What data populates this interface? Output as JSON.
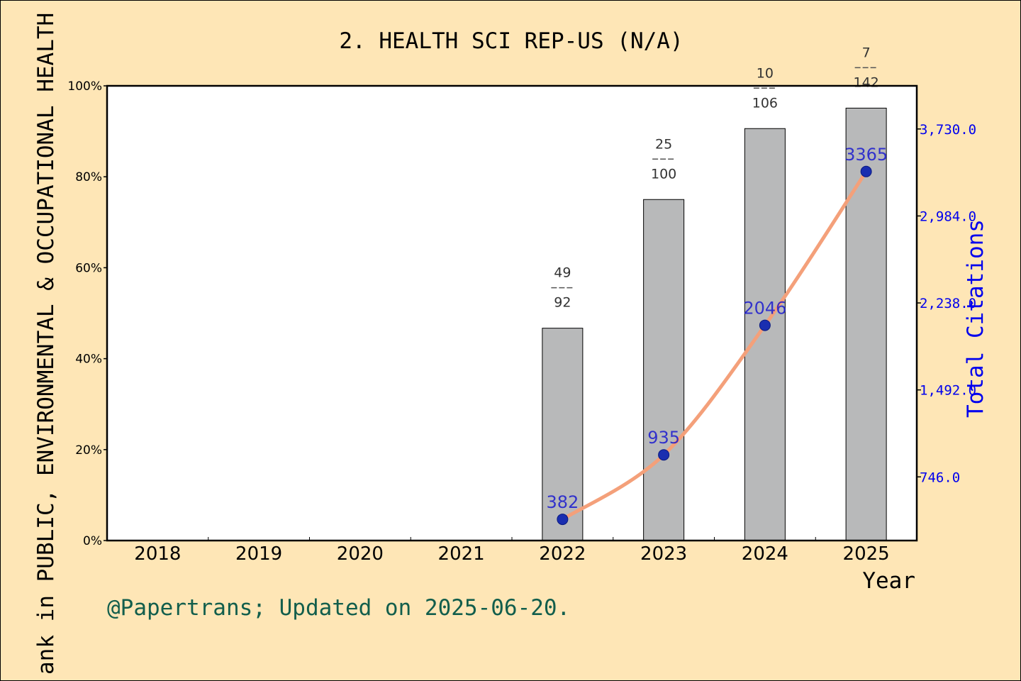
{
  "chart_data": {
    "type": "bar",
    "title": "2. HEALTH SCI REP-US (N/A)",
    "xlabel": "Year",
    "ylabel": "ank in PUBLIC, ENVIRONMENTAL & OCCUPATIONAL HEALTH",
    "y2label": "Total Citations",
    "categories": [
      "2018",
      "2019",
      "2020",
      "2021",
      "2022",
      "2023",
      "2024",
      "2025"
    ],
    "ylim": [
      0,
      100
    ],
    "y_ticks": [
      "0%",
      "20%",
      "40%",
      "60%",
      "80%",
      "100%"
    ],
    "y2_ticks": [
      "746.0",
      "1,492.0",
      "2,238.0",
      "2,984.0",
      "3,730.0"
    ],
    "y2_tick_values": [
      746,
      1492,
      2238,
      2984,
      3730
    ],
    "y2lim": [
      200,
      4100
    ],
    "series": [
      {
        "name": "",
        "kind": "bar",
        "values": [
          null,
          null,
          null,
          null,
          46.7,
          75,
          90.6,
          95.1
        ],
        "annotations": [
          null,
          null,
          null,
          null,
          {
            "rank": "49",
            "total": "92"
          },
          {
            "rank": "25",
            "total": "100"
          },
          {
            "rank": "10",
            "total": "106"
          },
          {
            "rank": "7",
            "total": "142"
          }
        ]
      },
      {
        "name": "",
        "kind": "line",
        "axis": "right",
        "values": [
          null,
          null,
          null,
          null,
          382,
          935,
          2046,
          3365
        ],
        "labels": [
          null,
          null,
          null,
          null,
          "382",
          "935",
          "2046",
          "3365"
        ]
      }
    ],
    "footnote": "@Papertrans; Updated on 2025-06-20.",
    "colors": {
      "background": "#fee6b6",
      "bar": "#b8b9ba",
      "line": "#f4a07a",
      "point": "#1a2eb0",
      "right_axis": "#0000ee",
      "footnote": "#125e4c"
    }
  }
}
